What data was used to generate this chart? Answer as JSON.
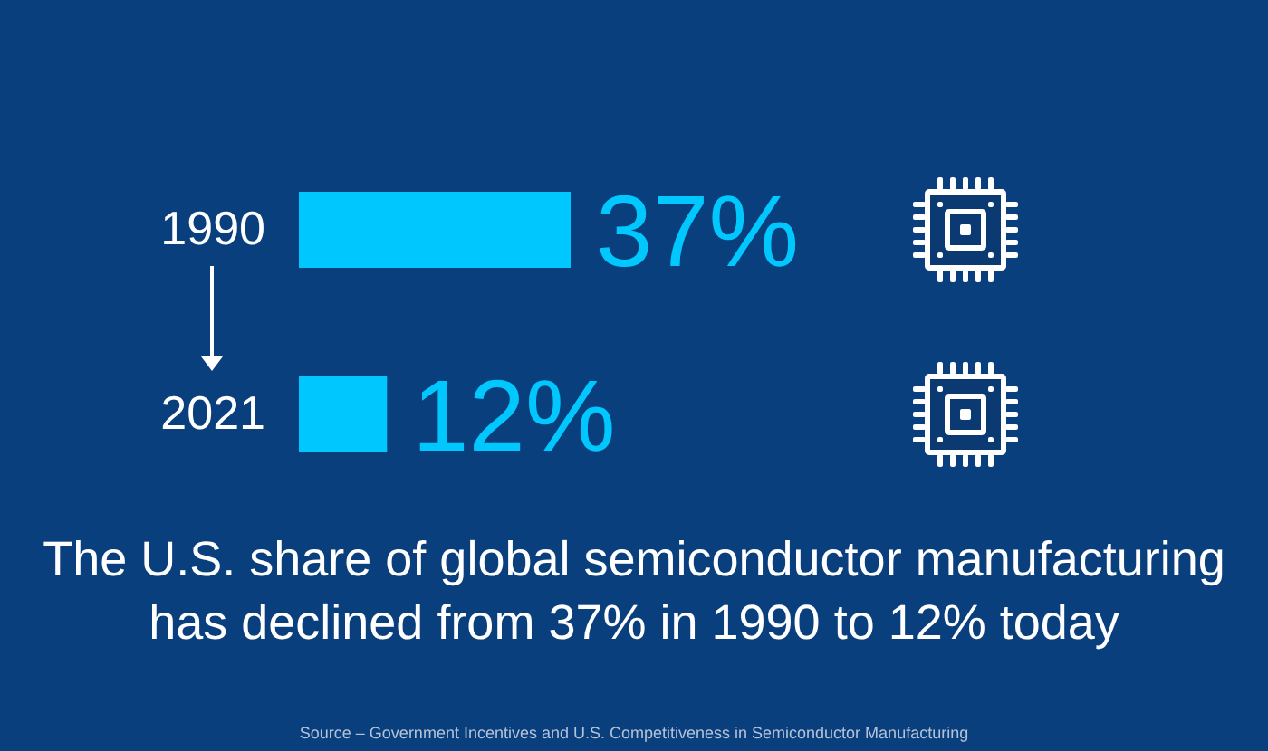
{
  "chart_data": {
    "type": "bar",
    "orientation": "horizontal",
    "title": "The U.S. share of global semiconductor manufacturing has declined from 37% in 1990 to 12% today",
    "annotations": [
      "Source – Government Incentives and U.S. Competitiveness in Semiconductor Manufacturing"
    ],
    "categories": [
      "1990",
      "2021"
    ],
    "values": [
      37,
      12
    ],
    "value_labels": [
      "37%",
      "12%"
    ],
    "color": "#00c7fd",
    "tick_labels": "y"
  }
}
